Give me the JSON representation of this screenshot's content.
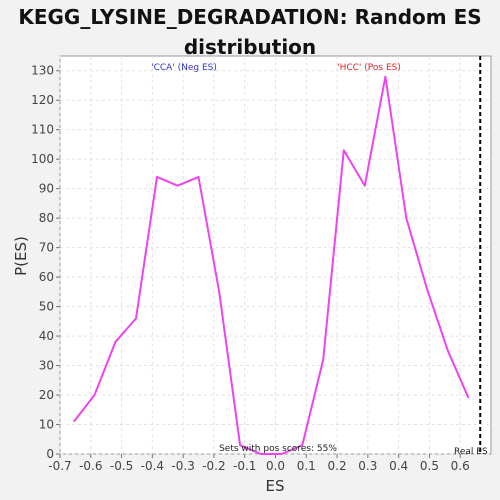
{
  "title_line1": "KEGG_LYSINE_DEGRADATION: Random ES",
  "title_line2": "distribution",
  "chart_data": {
    "type": "line",
    "title": "KEGG_LYSINE_DEGRADATION: Random ES distribution",
    "xlabel": "ES",
    "ylabel": "P(ES)",
    "xlim": [
      -0.7,
      0.7
    ],
    "ylim": [
      0,
      135
    ],
    "xticks": [
      "-0.7",
      "-0.6",
      "-0.5",
      "-0.4",
      "-0.3",
      "-0.2",
      "-0.1",
      "0.0",
      "0.1",
      "0.2",
      "0.3",
      "0.4",
      "0.5",
      "0.6"
    ],
    "yticks": [
      "0",
      "10",
      "20",
      "30",
      "40",
      "50",
      "60",
      "70",
      "80",
      "90",
      "100",
      "110",
      "120",
      "130"
    ],
    "grid": true,
    "series": [
      {
        "color": "#ee44ee",
        "x": [
          -0.655,
          -0.588,
          -0.52,
          -0.453,
          -0.385,
          -0.318,
          -0.25,
          -0.183,
          -0.115,
          -0.048,
          0.02,
          0.087,
          0.155,
          0.222,
          0.29,
          0.357,
          0.425,
          0.492,
          0.56,
          0.627
        ],
        "values": [
          11,
          20,
          38,
          46,
          94,
          91,
          94,
          55,
          3,
          0,
          0,
          3,
          32,
          103,
          91,
          128,
          80,
          56,
          35,
          19
        ]
      }
    ],
    "real_es": 0.665,
    "real_es_label": "Real ES",
    "neg_label": "'CCA' (Neg ES)",
    "neg_color": "#3333cc",
    "pos_label": "'HCC' (Pos ES)",
    "pos_color": "#dd2222",
    "footnote": "Sets with pos scores: 55%"
  }
}
